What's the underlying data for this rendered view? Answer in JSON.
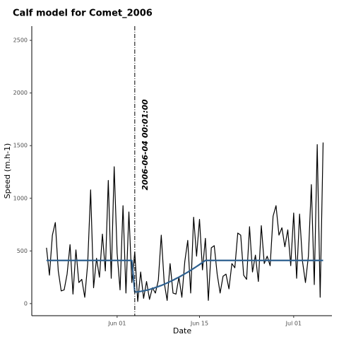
{
  "chart_data": {
    "type": "line",
    "title": "Calf model for Comet_2006",
    "xlabel": "Date",
    "ylabel": "Speed (m.h-1)",
    "x": [
      "05-20 00:00",
      "05-20 12:00",
      "05-21 00:00",
      "05-21 12:00",
      "05-22 00:00",
      "05-22 12:00",
      "05-23 00:00",
      "05-23 12:00",
      "05-24 00:00",
      "05-24 12:00",
      "05-25 00:00",
      "05-25 12:00",
      "05-26 00:00",
      "05-26 12:00",
      "05-27 00:00",
      "05-27 12:00",
      "05-28 00:00",
      "05-28 12:00",
      "05-29 00:00",
      "05-29 12:00",
      "05-30 00:00",
      "05-30 12:00",
      "05-31 00:00",
      "05-31 12:00",
      "06-01 00:00",
      "06-01 12:00",
      "06-02 00:00",
      "06-02 12:00",
      "06-03 00:00",
      "06-03 12:00",
      "06-04 00:00",
      "06-04 12:00",
      "06-05 00:00",
      "06-05 12:00",
      "06-06 00:00",
      "06-06 12:00",
      "06-07 00:00",
      "06-07 12:00",
      "06-08 00:00",
      "06-08 12:00",
      "06-09 00:00",
      "06-09 12:00",
      "06-10 00:00",
      "06-10 12:00",
      "06-11 00:00",
      "06-11 12:00",
      "06-12 00:00",
      "06-12 12:00",
      "06-13 00:00",
      "06-13 12:00",
      "06-14 00:00",
      "06-14 12:00",
      "06-15 00:00",
      "06-15 12:00",
      "06-16 00:00",
      "06-16 12:00",
      "06-17 00:00",
      "06-17 12:00",
      "06-18 00:00",
      "06-18 12:00",
      "06-19 00:00",
      "06-19 12:00",
      "06-20 00:00",
      "06-20 12:00",
      "06-21 00:00",
      "06-21 12:00",
      "06-22 00:00",
      "06-22 12:00",
      "06-23 00:00",
      "06-23 12:00",
      "06-24 00:00",
      "06-24 12:00",
      "06-25 00:00",
      "06-25 12:00",
      "06-26 00:00",
      "06-26 12:00",
      "06-27 00:00",
      "06-27 12:00",
      "06-28 00:00",
      "06-28 12:00",
      "06-29 00:00",
      "06-29 12:00",
      "06-30 00:00",
      "06-30 12:00",
      "07-01 00:00",
      "07-01 12:00",
      "07-02 00:00",
      "07-02 12:00",
      "07-03 00:00",
      "07-03 12:00",
      "07-04 00:00",
      "07-04 12:00",
      "07-05 00:00",
      "07-05 12:00",
      "07-06 00:00"
    ],
    "series": [
      {
        "color": "#000000",
        "width": 1.2,
        "values": [
          530,
          270,
          650,
          770,
          310,
          120,
          130,
          280,
          560,
          90,
          510,
          200,
          230,
          60,
          380,
          1080,
          150,
          430,
          250,
          660,
          310,
          1170,
          240,
          1300,
          480,
          130,
          930,
          100,
          870,
          200,
          490,
          20,
          300,
          50,
          210,
          40,
          150,
          100,
          220,
          650,
          200,
          30,
          380,
          100,
          90,
          250,
          60,
          400,
          600,
          100,
          820,
          450,
          800,
          320,
          620,
          30,
          530,
          550,
          280,
          100,
          260,
          280,
          140,
          380,
          340,
          670,
          650,
          270,
          230,
          730,
          300,
          460,
          210,
          740,
          380,
          450,
          360,
          830,
          930,
          650,
          720,
          540,
          700,
          360,
          860,
          240,
          850,
          400,
          200,
          450,
          1130,
          180,
          1510,
          60,
          1530
        ]
      },
      {
        "color": "#2f6190",
        "width": 2.2,
        "values": [
          410,
          410,
          410,
          410,
          410,
          410,
          410,
          410,
          410,
          410,
          410,
          410,
          410,
          410,
          410,
          410,
          410,
          410,
          410,
          410,
          410,
          410,
          410,
          410,
          410,
          410,
          410,
          410,
          410,
          410,
          110,
          112,
          116,
          121,
          127,
          134,
          143,
          152,
          162,
          172,
          184,
          196,
          209,
          222,
          237,
          251,
          267,
          283,
          299,
          316,
          334,
          352,
          371,
          390,
          410,
          410,
          410,
          410,
          410,
          410,
          410,
          410,
          410,
          410,
          410,
          410,
          410,
          410,
          410,
          410,
          410,
          410,
          410,
          410,
          410,
          410,
          410,
          410,
          410,
          410,
          410,
          410,
          410,
          410,
          410,
          410,
          410,
          410,
          410,
          410,
          410,
          410,
          410,
          410,
          410
        ]
      }
    ],
    "annotations": [
      {
        "x": "06-04 00:00",
        "label": "2006-06-04 00:01:00",
        "linestyle": "dashdot"
      }
    ],
    "xlim": [
      "05-17 12:00",
      "07-07 12:00"
    ],
    "xticks": [
      {
        "value": "06-01 00:00",
        "label": "Jun 01"
      },
      {
        "value": "06-15 00:00",
        "label": "Jun 15"
      },
      {
        "value": "07-01 00:00",
        "label": "Jul 01"
      }
    ],
    "ylim": [
      -115,
      2635
    ],
    "yticks": [
      0,
      500,
      1000,
      1500,
      2000,
      2500
    ],
    "grid": false
  }
}
